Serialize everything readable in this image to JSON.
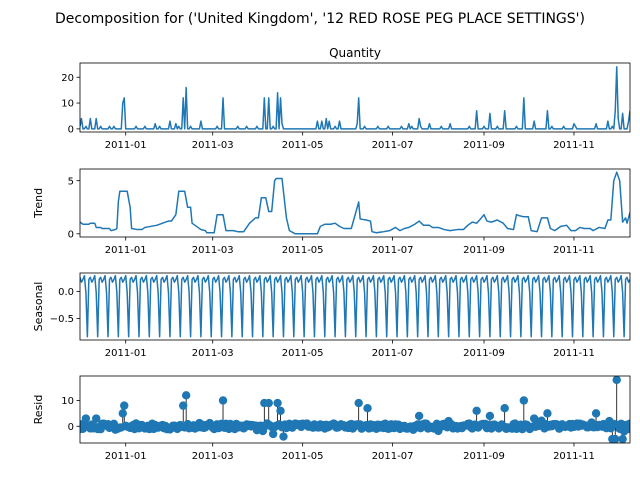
{
  "chart_data": {
    "type": "line",
    "suptitle": "Decomposition for ('United Kingdom', '12 RED ROSE PEG PLACE SETTINGS')",
    "x_tick_labels": [
      "2011-01",
      "2011-03",
      "2011-05",
      "2011-07",
      "2011-09",
      "2011-11"
    ],
    "x_ticks": [
      "2011-01-01",
      "2011-03-01",
      "2011-05-01",
      "2011-07-01",
      "2011-09-01",
      "2011-11-01"
    ],
    "x_range": [
      "2010-12-01",
      "2011-12-09"
    ],
    "line_color": "#1f77b4",
    "panels": [
      {
        "name": "observed",
        "title": "Quantity",
        "ylabel": "",
        "style": "line",
        "ylim": [
          -1.2,
          25.5
        ],
        "yticks": [
          0,
          10,
          20
        ],
        "ytick_labels": [
          "0",
          "10",
          "20"
        ],
        "spikes": [
          [
            "2010-12-01",
            1
          ],
          [
            "2010-12-02",
            4
          ],
          [
            "2010-12-05",
            1
          ],
          [
            "2010-12-08",
            4
          ],
          [
            "2010-12-12",
            4
          ],
          [
            "2010-12-15",
            1
          ],
          [
            "2010-12-21",
            1
          ],
          [
            "2010-12-24",
            1
          ],
          [
            "2010-12-30",
            10
          ],
          [
            "2010-12-31",
            12
          ],
          [
            "2011-01-08",
            1
          ],
          [
            "2011-01-14",
            1
          ],
          [
            "2011-01-21",
            2
          ],
          [
            "2011-01-24",
            1
          ],
          [
            "2011-01-31",
            3
          ],
          [
            "2011-02-04",
            2
          ],
          [
            "2011-02-06",
            1
          ],
          [
            "2011-02-09",
            12
          ],
          [
            "2011-02-11",
            16
          ],
          [
            "2011-02-14",
            1
          ],
          [
            "2011-02-21",
            3
          ],
          [
            "2011-03-04",
            1
          ],
          [
            "2011-03-08",
            12
          ],
          [
            "2011-03-18",
            1
          ],
          [
            "2011-03-24",
            1
          ],
          [
            "2011-03-31",
            1
          ],
          [
            "2011-04-05",
            12
          ],
          [
            "2011-04-08",
            12
          ],
          [
            "2011-04-11",
            1
          ],
          [
            "2011-04-14",
            14
          ],
          [
            "2011-04-16",
            12
          ],
          [
            "2011-04-17",
            2
          ],
          [
            "2011-05-11",
            3
          ],
          [
            "2011-05-14",
            3
          ],
          [
            "2011-05-17",
            4
          ],
          [
            "2011-05-19",
            3
          ],
          [
            "2011-05-23",
            1
          ],
          [
            "2011-05-26",
            3
          ],
          [
            "2011-06-07",
            2
          ],
          [
            "2011-06-08",
            12
          ],
          [
            "2011-06-12",
            1
          ],
          [
            "2011-06-21",
            1
          ],
          [
            "2011-06-28",
            1
          ],
          [
            "2011-07-07",
            1
          ],
          [
            "2011-07-12",
            2
          ],
          [
            "2011-07-14",
            1
          ],
          [
            "2011-07-19",
            4
          ],
          [
            "2011-07-20",
            1
          ],
          [
            "2011-07-26",
            2
          ],
          [
            "2011-08-03",
            1
          ],
          [
            "2011-08-09",
            2
          ],
          [
            "2011-08-22",
            1
          ],
          [
            "2011-08-27",
            7
          ],
          [
            "2011-09-01",
            1
          ],
          [
            "2011-09-05",
            6
          ],
          [
            "2011-09-10",
            1
          ],
          [
            "2011-09-15",
            7
          ],
          [
            "2011-09-23",
            1
          ],
          [
            "2011-09-28",
            12
          ],
          [
            "2011-10-05",
            3
          ],
          [
            "2011-10-14",
            7
          ],
          [
            "2011-10-17",
            1
          ],
          [
            "2011-10-25",
            1
          ],
          [
            "2011-11-01",
            2
          ],
          [
            "2011-11-02",
            1
          ],
          [
            "2011-11-16",
            2
          ],
          [
            "2011-11-24",
            3
          ],
          [
            "2011-11-27",
            1
          ],
          [
            "2011-11-29",
            7
          ],
          [
            "2011-11-30",
            24
          ],
          [
            "2011-12-01",
            4
          ],
          [
            "2011-12-04",
            6
          ],
          [
            "2011-12-08",
            3
          ],
          [
            "2011-12-09",
            7
          ]
        ]
      },
      {
        "name": "trend",
        "title": "",
        "ylabel": "Trend",
        "style": "line",
        "ylim": [
          -0.3,
          6.1
        ],
        "yticks": [
          0,
          5
        ],
        "ytick_labels": [
          "0",
          "5"
        ],
        "points": [
          [
            "2010-12-01",
            1.1
          ],
          [
            "2010-12-03",
            0.9
          ],
          [
            "2010-12-07",
            0.9
          ],
          [
            "2010-12-08",
            1.0
          ],
          [
            "2010-12-11",
            1.0
          ],
          [
            "2010-12-12",
            0.6
          ],
          [
            "2010-12-15",
            0.6
          ],
          [
            "2010-12-16",
            0.5
          ],
          [
            "2010-12-21",
            0.5
          ],
          [
            "2010-12-22",
            0.3
          ],
          [
            "2010-12-25",
            0.4
          ],
          [
            "2010-12-26",
            0.5
          ],
          [
            "2010-12-27",
            3.0
          ],
          [
            "2010-12-28",
            4.0
          ],
          [
            "2011-01-02",
            4.0
          ],
          [
            "2011-01-04",
            2.5
          ],
          [
            "2011-01-05",
            0.5
          ],
          [
            "2011-01-09",
            0.4
          ],
          [
            "2011-01-12",
            0.4
          ],
          [
            "2011-01-14",
            0.6
          ],
          [
            "2011-01-22",
            0.8
          ],
          [
            "2011-01-30",
            1.2
          ],
          [
            "2011-02-01",
            1.2
          ],
          [
            "2011-02-04",
            1.8
          ],
          [
            "2011-02-06",
            4.0
          ],
          [
            "2011-02-10",
            4.0
          ],
          [
            "2011-02-12",
            2.5
          ],
          [
            "2011-02-14",
            2.5
          ],
          [
            "2011-02-15",
            1.0
          ],
          [
            "2011-02-17",
            0.8
          ],
          [
            "2011-02-21",
            0.4
          ],
          [
            "2011-02-24",
            0.3
          ],
          [
            "2011-02-25",
            0.1
          ],
          [
            "2011-03-02",
            0.1
          ],
          [
            "2011-03-04",
            1.8
          ],
          [
            "2011-03-08",
            1.8
          ],
          [
            "2011-03-10",
            0.3
          ],
          [
            "2011-03-15",
            0.3
          ],
          [
            "2011-03-18",
            0.2
          ],
          [
            "2011-03-22",
            0.2
          ],
          [
            "2011-03-26",
            1.0
          ],
          [
            "2011-03-30",
            1.5
          ],
          [
            "2011-04-01",
            1.5
          ],
          [
            "2011-04-03",
            3.4
          ],
          [
            "2011-04-06",
            3.4
          ],
          [
            "2011-04-08",
            2.1
          ],
          [
            "2011-04-10",
            2.1
          ],
          [
            "2011-04-12",
            5.0
          ],
          [
            "2011-04-13",
            5.2
          ],
          [
            "2011-04-17",
            5.2
          ],
          [
            "2011-04-20",
            1.5
          ],
          [
            "2011-04-22",
            0.3
          ],
          [
            "2011-04-26",
            0
          ],
          [
            "2011-05-11",
            0
          ],
          [
            "2011-05-13",
            0.7
          ],
          [
            "2011-05-16",
            0.9
          ],
          [
            "2011-05-20",
            0.9
          ],
          [
            "2011-05-23",
            1.0
          ],
          [
            "2011-05-26",
            0.7
          ],
          [
            "2011-05-29",
            0.5
          ],
          [
            "2011-06-03",
            0.5
          ],
          [
            "2011-06-06",
            2.0
          ],
          [
            "2011-06-08",
            3.0
          ],
          [
            "2011-06-09",
            1.4
          ],
          [
            "2011-06-13",
            1.3
          ],
          [
            "2011-06-16",
            1.2
          ],
          [
            "2011-06-17",
            0.2
          ],
          [
            "2011-06-20",
            0.1
          ],
          [
            "2011-06-25",
            0.2
          ],
          [
            "2011-06-29",
            0.3
          ],
          [
            "2011-07-03",
            0.6
          ],
          [
            "2011-07-06",
            0.3
          ],
          [
            "2011-07-09",
            0.5
          ],
          [
            "2011-07-12",
            0.6
          ],
          [
            "2011-07-16",
            0.9
          ],
          [
            "2011-07-19",
            1.2
          ],
          [
            "2011-07-22",
            0.8
          ],
          [
            "2011-07-26",
            0.8
          ],
          [
            "2011-07-28",
            0.6
          ],
          [
            "2011-08-01",
            0.6
          ],
          [
            "2011-08-05",
            0.4
          ],
          [
            "2011-08-09",
            0.3
          ],
          [
            "2011-08-14",
            0.4
          ],
          [
            "2011-08-18",
            0.4
          ],
          [
            "2011-08-21",
            0.8
          ],
          [
            "2011-08-24",
            1.1
          ],
          [
            "2011-08-27",
            1.0
          ],
          [
            "2011-08-29",
            1.3
          ],
          [
            "2011-09-01",
            1.8
          ],
          [
            "2011-09-03",
            1.2
          ],
          [
            "2011-09-06",
            1.1
          ],
          [
            "2011-09-10",
            1.3
          ],
          [
            "2011-09-14",
            1.0
          ],
          [
            "2011-09-17",
            0.5
          ],
          [
            "2011-09-21",
            0.4
          ],
          [
            "2011-09-23",
            1.8
          ],
          [
            "2011-09-25",
            1.7
          ],
          [
            "2011-09-28",
            1.6
          ],
          [
            "2011-10-01",
            1.6
          ],
          [
            "2011-10-03",
            0.3
          ],
          [
            "2011-10-07",
            0.2
          ],
          [
            "2011-10-10",
            1.5
          ],
          [
            "2011-10-14",
            1.5
          ],
          [
            "2011-10-16",
            0.5
          ],
          [
            "2011-10-19",
            0.3
          ],
          [
            "2011-10-23",
            0.7
          ],
          [
            "2011-10-27",
            0.8
          ],
          [
            "2011-10-30",
            0.3
          ],
          [
            "2011-11-02",
            0.3
          ],
          [
            "2011-11-05",
            0.6
          ],
          [
            "2011-11-08",
            0.5
          ],
          [
            "2011-11-12",
            0.5
          ],
          [
            "2011-11-14",
            0.3
          ],
          [
            "2011-11-18",
            0.6
          ],
          [
            "2011-11-22",
            0.5
          ],
          [
            "2011-11-24",
            1.3
          ],
          [
            "2011-11-26",
            1.3
          ],
          [
            "2011-11-28",
            5.0
          ],
          [
            "2011-11-30",
            5.8
          ],
          [
            "2011-12-02",
            5.0
          ],
          [
            "2011-12-04",
            1.1
          ],
          [
            "2011-12-06",
            1.5
          ],
          [
            "2011-12-07",
            1.0
          ],
          [
            "2011-12-09",
            2.0
          ]
        ]
      },
      {
        "name": "seasonal",
        "title": "",
        "ylabel": "Seasonal",
        "style": "line",
        "ylim": [
          -0.9,
          0.34
        ],
        "yticks": [
          0,
          -0.5
        ],
        "ytick_labels": [
          "0.0",
          "−0.5"
        ],
        "weekly_cycle": [
          0.26,
          0.17,
          0.22,
          0.29,
          -0.02,
          -0.84,
          0.22
        ]
      },
      {
        "name": "resid",
        "title": "",
        "ylabel": "Resid",
        "style": "scatter",
        "ylim": [
          -6.5,
          19.5
        ],
        "yticks": [
          0,
          10
        ],
        "ytick_labels": [
          "0",
          "10"
        ],
        "baseline": 0,
        "noise_seed": 17,
        "outliers": [
          [
            "2010-12-05",
            3
          ],
          [
            "2010-12-12",
            3
          ],
          [
            "2010-12-30",
            5
          ],
          [
            "2010-12-31",
            8
          ],
          [
            "2011-02-09",
            8
          ],
          [
            "2011-02-11",
            12
          ],
          [
            "2011-03-08",
            10
          ],
          [
            "2011-04-05",
            9
          ],
          [
            "2011-04-08",
            9
          ],
          [
            "2011-04-11",
            -3
          ],
          [
            "2011-04-14",
            9
          ],
          [
            "2011-04-16",
            6
          ],
          [
            "2011-04-18",
            -4
          ],
          [
            "2011-06-08",
            9
          ],
          [
            "2011-06-14",
            7
          ],
          [
            "2011-07-19",
            4
          ],
          [
            "2011-08-27",
            6
          ],
          [
            "2011-09-05",
            4
          ],
          [
            "2011-09-15",
            7
          ],
          [
            "2011-09-28",
            10
          ],
          [
            "2011-10-05",
            3
          ],
          [
            "2011-10-14",
            5
          ],
          [
            "2011-11-16",
            5
          ],
          [
            "2011-11-25",
            2
          ],
          [
            "2011-11-27",
            -5
          ],
          [
            "2011-11-29",
            -5
          ],
          [
            "2011-11-30",
            18
          ],
          [
            "2011-12-04",
            -5
          ],
          [
            "2011-12-09",
            1
          ]
        ]
      }
    ]
  }
}
